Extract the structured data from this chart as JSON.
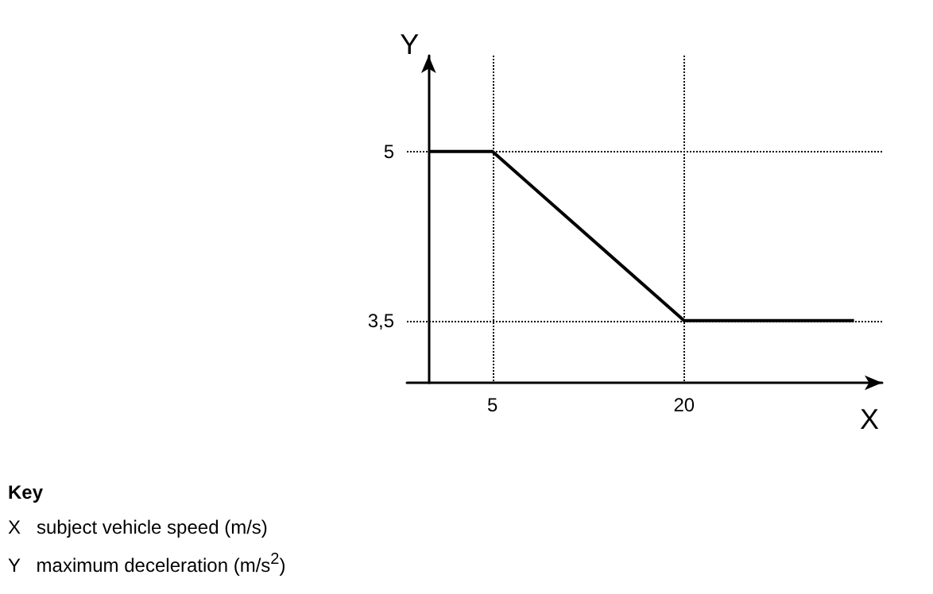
{
  "chart_data": {
    "type": "line",
    "xlabel": "X",
    "ylabel": "Y",
    "x": [
      0,
      5,
      20,
      33.3
    ],
    "series": [
      {
        "color": "#000000",
        "values": [
          5,
          5,
          3.5,
          3.5
        ]
      }
    ],
    "xlim": [
      -1.7,
      35.5
    ],
    "ylim": [
      2.95,
      5.85
    ],
    "xticks": [
      5,
      20
    ],
    "yticks": [
      {
        "value": 3.5,
        "label": "3,5"
      },
      5
    ],
    "grid": true,
    "marker": "none",
    "line_style": "solid",
    "annotations": [
      "Key",
      "X   subject vehicle speed (m/s)",
      "Y   maximum deceleration (m/s$^{2}$)"
    ]
  }
}
